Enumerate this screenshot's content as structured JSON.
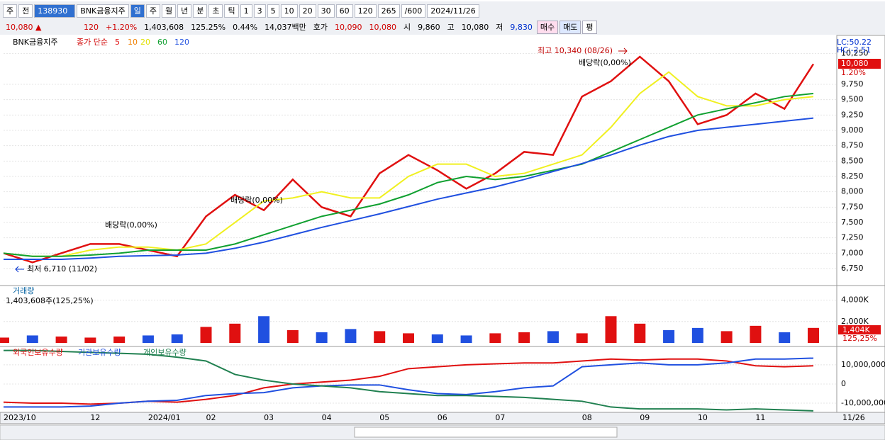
{
  "toolbar": {
    "items": [
      "주",
      "전",
      "138930",
      "BNK금융지주",
      "일",
      "주",
      "월",
      "년",
      "분",
      "초",
      "틱",
      "1",
      "3",
      "5",
      "10",
      "20",
      "30",
      "60",
      "120",
      "265",
      "/600",
      "2024/11/26"
    ]
  },
  "quote": {
    "items": [
      "10,080 ▲",
      "120",
      "+1.20%",
      "1,403,608",
      "125.25%",
      "0.44%",
      "14,037백만",
      "호가",
      "10,090",
      "10,080",
      "시",
      "9,860",
      "고",
      "10,080",
      "저",
      "9,830",
      "매수",
      "매도",
      "평"
    ]
  },
  "chart_data": [
    {
      "type": "line",
      "title": "BNK금융지주",
      "legend_label": "종가 단순",
      "periods": [
        "5",
        "10",
        "20",
        "60",
        "120"
      ],
      "categories": [
        "2023/10",
        null,
        null,
        "12",
        null,
        "2024/01",
        null,
        "02",
        null,
        "03",
        null,
        "04",
        null,
        "05",
        null,
        "06",
        null,
        "07",
        null,
        null,
        "08",
        null,
        "09",
        null,
        "10",
        null,
        "11",
        null,
        null
      ],
      "series": [
        {
          "name": "종가",
          "color": "#e01010",
          "values": [
            7000,
            6850,
            7000,
            7150,
            7150,
            7050,
            6950,
            7600,
            7950,
            7700,
            8200,
            7750,
            7600,
            8300,
            8600,
            8350,
            8050,
            8300,
            8650,
            8600,
            9550,
            9800,
            10200,
            9800,
            9100,
            9250,
            9600,
            9350,
            10080
          ]
        },
        {
          "name": "20",
          "color": "#f0f020",
          "values": [
            7000,
            6950,
            6950,
            7050,
            7100,
            7100,
            7050,
            7150,
            7500,
            7850,
            7900,
            8000,
            7900,
            7900,
            8250,
            8450,
            8450,
            8250,
            8300,
            8450,
            8600,
            9050,
            9600,
            9950,
            9550,
            9400,
            9400,
            9500,
            9550
          ]
        },
        {
          "name": "60",
          "color": "#10a030",
          "values": [
            7000,
            6950,
            6950,
            6970,
            7000,
            7050,
            7050,
            7050,
            7150,
            7300,
            7450,
            7600,
            7700,
            7800,
            7950,
            8150,
            8250,
            8200,
            8250,
            8350,
            8450,
            8650,
            8850,
            9050,
            9250,
            9350,
            9450,
            9550,
            9600
          ]
        },
        {
          "name": "120",
          "color": "#2050e0",
          "values": [
            6900,
            6900,
            6900,
            6920,
            6950,
            6960,
            6970,
            7000,
            7080,
            7180,
            7300,
            7420,
            7530,
            7640,
            7760,
            7880,
            7980,
            8080,
            8200,
            8330,
            8460,
            8600,
            8760,
            8900,
            9000,
            9050,
            9100,
            9150,
            9200
          ]
        }
      ],
      "ylim": [
        6485,
        10488
      ],
      "yticks": [
        {
          "value": 6750,
          "label": "6,750"
        },
        {
          "value": 7000,
          "label": "7,000"
        },
        {
          "value": 7250,
          "label": "7,250"
        },
        {
          "value": 7500,
          "label": "7,500"
        },
        {
          "value": 7750,
          "label": "7,750"
        },
        {
          "value": 8000,
          "label": "8,000"
        },
        {
          "value": 8250,
          "label": "8,250"
        },
        {
          "value": 8500,
          "label": "8,500"
        },
        {
          "value": 8750,
          "label": "8,750"
        },
        {
          "value": 9000,
          "label": "9,000"
        },
        {
          "value": 9250,
          "label": "9,250"
        },
        {
          "value": 9500,
          "label": "9,500"
        },
        {
          "value": 9750,
          "label": "9,750"
        },
        {
          "value": 10250,
          "label": "10,250"
        }
      ],
      "annotations": [
        "최고 10,340 (08/26)",
        "최저 6,710 (11/02)",
        "배당락(0,00%)",
        "배당락(0,00%)",
        "배당락(0,00%)"
      ],
      "side_labels": [
        "LC:50.22",
        "HC:-2.51",
        "10,080",
        "1.20%"
      ],
      "last_date": "11/26",
      "grid": true
    },
    {
      "type": "bar",
      "title": "거래량",
      "subtitle": "1,403,608주(125,25%)",
      "values": [
        500,
        700,
        600,
        500,
        600,
        700,
        800,
        1500,
        1800,
        2500,
        1200,
        1000,
        1300,
        1100,
        900,
        800,
        700,
        900,
        1000,
        1100,
        900,
        2500,
        1800,
        1200,
        1400,
        1100,
        1600,
        1000,
        1404
      ],
      "up_color": "#e01010",
      "down_color": "#2050e0",
      "ylim": [
        0,
        5300
      ],
      "yticks": [
        {
          "value": 4000,
          "label": "4,000K"
        },
        {
          "value": 2000,
          "label": "2,000K"
        }
      ],
      "side_labels": [
        "1,404K",
        "125,25%"
      ]
    },
    {
      "type": "line",
      "series": [
        {
          "name": "외국인보유수량",
          "color": "#e01010",
          "values": [
            -9500000,
            -10000000,
            -10000000,
            -10500000,
            -10000000,
            -9000000,
            -9500000,
            -8000000,
            -6000000,
            -2000000,
            0,
            1000000,
            2000000,
            4000000,
            8000000,
            9000000,
            10000000,
            10500000,
            11000000,
            11000000,
            12000000,
            13000000,
            12500000,
            13000000,
            13000000,
            12000000,
            9500000,
            9000000,
            9500000
          ]
        },
        {
          "name": "기관보유수량",
          "color": "#2050e0",
          "values": [
            -12000000,
            -12000000,
            -12000000,
            -11500000,
            -10000000,
            -9000000,
            -8500000,
            -6000000,
            -5000000,
            -4500000,
            -2000000,
            -1000000,
            -500000,
            -500000,
            -3000000,
            -5000000,
            -5500000,
            -4000000,
            -2000000,
            -1000000,
            9000000,
            10000000,
            11000000,
            10000000,
            10000000,
            11000000,
            13000000,
            13000000,
            13500000
          ]
        },
        {
          "name": "개인보유수량",
          "color": "#208050",
          "values": [
            17500000,
            17500000,
            17000000,
            16500000,
            16000000,
            15500000,
            14000000,
            12000000,
            5000000,
            2000000,
            0,
            -1000000,
            -2000000,
            -4000000,
            -5000000,
            -6000000,
            -6000000,
            -6500000,
            -7000000,
            -8000000,
            -9000000,
            -12000000,
            -13000000,
            -13000000,
            -13000000,
            -13500000,
            -13000000,
            -13500000,
            -14000000
          ]
        }
      ],
      "ylim": [
        -14800000,
        18100000
      ],
      "yticks": [
        {
          "value": 10000000,
          "label": "10,000,000"
        },
        0,
        {
          "value": -10000000,
          "label": "-10,000,000"
        }
      ]
    }
  ]
}
